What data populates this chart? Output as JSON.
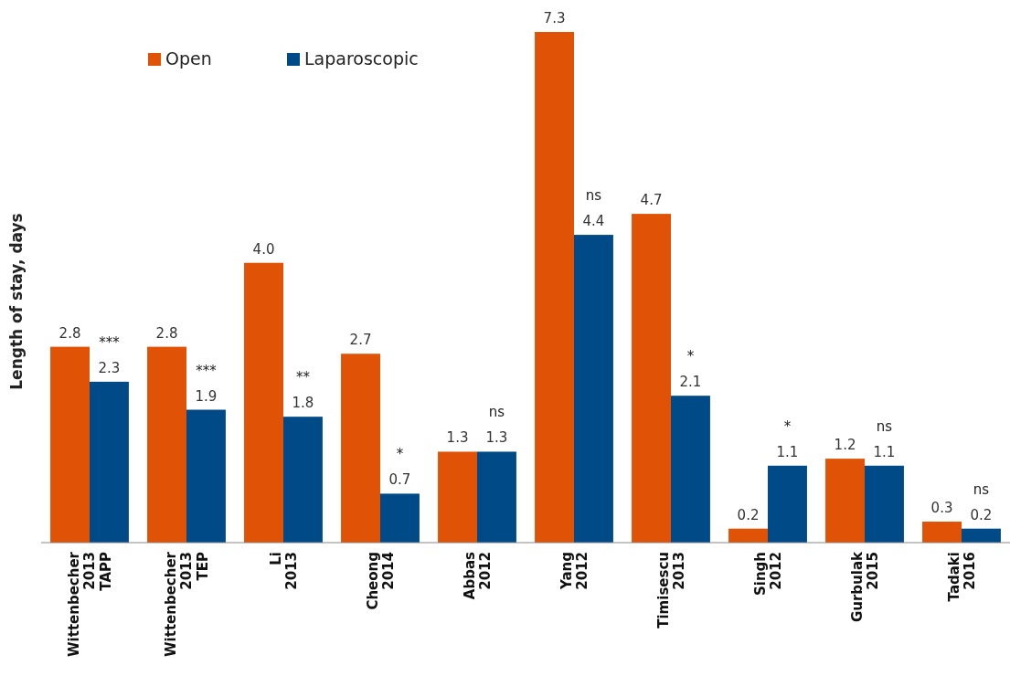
{
  "chart_data": {
    "type": "bar",
    "ylabel": "Length of stay, days",
    "categories": [
      "Wittenbecher\n2013\nTAPP",
      "Wittenbecher\n2013\nTEP",
      "Li\n2013",
      "Cheong\n2014",
      "Abbas\n2012",
      "Yang\n2012",
      "Timisescu\n2013",
      "Singh\n2012",
      "Gurbulak\n2015",
      "Tadaki\n2016"
    ],
    "series": [
      {
        "name": "Open",
        "color": "#e05206",
        "values": [
          2.8,
          2.8,
          4.0,
          2.7,
          1.3,
          7.3,
          4.7,
          0.2,
          1.2,
          0.3
        ],
        "value_labels": [
          "2.8",
          "2.8",
          "4.0",
          "2.7",
          "1.3",
          "7.3",
          "4.7",
          "0.2",
          "1.2",
          "0.3"
        ]
      },
      {
        "name": "Laparoscopic",
        "color": "#004b87",
        "values": [
          2.3,
          1.9,
          1.8,
          0.7,
          1.3,
          4.4,
          2.1,
          1.1,
          1.1,
          0.2
        ],
        "value_labels": [
          "2.3",
          "1.9",
          "1.8",
          "0.7",
          "1.3",
          "4.4",
          "2.1",
          "1.1",
          "1.1",
          "0.2"
        ]
      }
    ],
    "legend": "top left",
    "grid": false,
    "annotations": [
      {
        "text": "***",
        "x": "Wittenbecher\n2013\nTAPP",
        "y": 2.3
      },
      {
        "text": "***",
        "x": "Wittenbecher\n2013\nTEP",
        "y": 1.9
      },
      {
        "text": "**",
        "x": "Li\n2013",
        "y": 1.8
      },
      {
        "text": "*",
        "x": "Cheong\n2014",
        "y": 0.7
      },
      {
        "text": "ns",
        "x": "Abbas\n2012",
        "y": 1.3
      },
      {
        "text": "ns",
        "x": "Yang\n2012",
        "y": 4.4
      },
      {
        "text": "*",
        "x": "Timisescu\n2013",
        "y": 2.1
      },
      {
        "text": "*",
        "x": "Singh\n2012",
        "y": 1.1
      },
      {
        "text": "ns",
        "x": "Gurbulak\n2015",
        "y": 1.1
      },
      {
        "text": "ns",
        "x": "Tadaki\n2016",
        "y": 0.2
      }
    ]
  }
}
